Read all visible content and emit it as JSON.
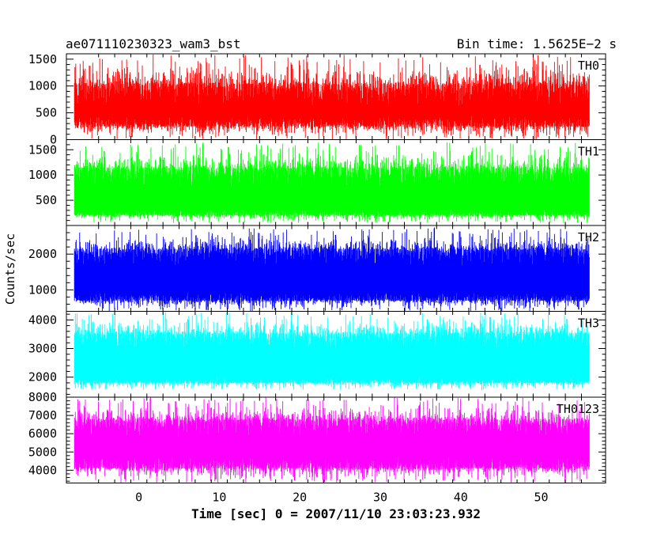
{
  "header": {
    "left": "ae071110230323_wam3_bst",
    "right": "Bin time: 1.5625E−2 s"
  },
  "chart_data": {
    "type": "line",
    "title": "ae071110230323_wam3_bst",
    "subtitle": "Bin time: 1.5625E−2 s",
    "xlabel": "Time [sec] 0 = 2007/11/10 23:03:23.932",
    "ylabel": "Counts/sec",
    "xlim": [
      -9,
      58
    ],
    "x_ticks": [
      0,
      10,
      20,
      30,
      40,
      50
    ],
    "x_data_range": [
      -8,
      56
    ],
    "bin_time_s": 0.015625,
    "grid": false,
    "panels": [
      {
        "name": "TH0",
        "color": "#ff0000",
        "ylim": [
          0,
          1600
        ],
        "y_ticks": [
          0,
          500,
          1000,
          1500
        ],
        "band": [
          250,
          1050
        ],
        "spread": [
          0,
          1600
        ]
      },
      {
        "name": "TH1",
        "color": "#00ff00",
        "ylim": [
          0,
          1700
        ],
        "y_ticks": [
          500,
          1000,
          1500
        ],
        "band": [
          200,
          1150
        ],
        "spread": [
          50,
          1650
        ]
      },
      {
        "name": "TH2",
        "color": "#0000ff",
        "ylim": [
          400,
          2800
        ],
        "y_ticks": [
          1000,
          2000
        ],
        "band": [
          700,
          2150
        ],
        "spread": [
          400,
          2750
        ]
      },
      {
        "name": "TH3",
        "color": "#00ffff",
        "ylim": [
          1300,
          4300
        ],
        "y_ticks": [
          2000,
          3000,
          4000
        ],
        "band": [
          1800,
          3550
        ],
        "spread": [
          1550,
          4300
        ]
      },
      {
        "name": "TH0123",
        "color": "#ff00ff",
        "ylim": [
          3300,
          8000
        ],
        "y_ticks": [
          4000,
          5000,
          6000,
          7000,
          8000
        ],
        "band": [
          4100,
          6800
        ],
        "spread": [
          3300,
          8000
        ]
      }
    ]
  }
}
